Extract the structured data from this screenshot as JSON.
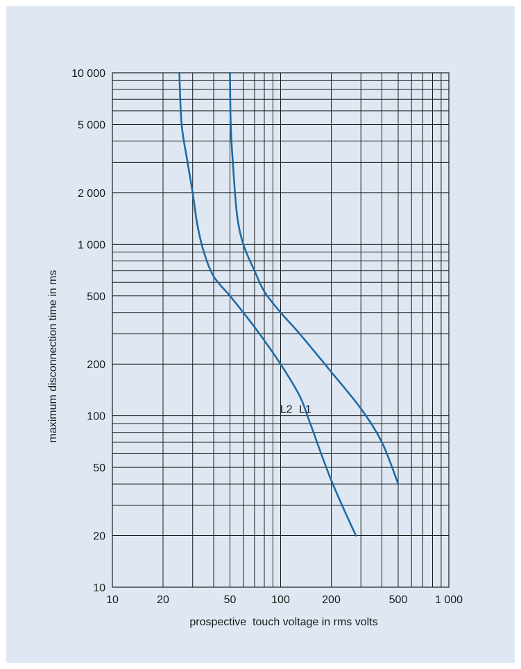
{
  "chart_data": {
    "type": "line",
    "xlabel": "prospective  touch voltage in rms volts",
    "ylabel": "maximum disconnection time in ms",
    "x_scale": "log",
    "y_scale": "log",
    "xlim": [
      10,
      1000
    ],
    "ylim": [
      10,
      10000
    ],
    "x_ticks": [
      {
        "value": 10,
        "label": "10"
      },
      {
        "value": 20,
        "label": "20"
      },
      {
        "value": 50,
        "label": "50"
      },
      {
        "value": 100,
        "label": "100"
      },
      {
        "value": 200,
        "label": "200"
      },
      {
        "value": 500,
        "label": "500"
      },
      {
        "value": 1000,
        "label": "1 000"
      }
    ],
    "y_ticks": [
      {
        "value": 10,
        "label": "10"
      },
      {
        "value": 20,
        "label": "20"
      },
      {
        "value": 50,
        "label": "50"
      },
      {
        "value": 100,
        "label": "100"
      },
      {
        "value": 200,
        "label": "200"
      },
      {
        "value": 500,
        "label": "500"
      },
      {
        "value": 1000,
        "label": "1 000"
      },
      {
        "value": 2000,
        "label": "2 000"
      },
      {
        "value": 5000,
        "label": "5 000"
      },
      {
        "value": 10000,
        "label": "10 000"
      }
    ],
    "grid": true,
    "line_color": "#1f6aa5",
    "series": [
      {
        "name": "L1",
        "label_at": [
          140,
          100
        ],
        "points": [
          [
            50,
            10000
          ],
          [
            50.5,
            5000
          ],
          [
            52,
            3000
          ],
          [
            55,
            1500
          ],
          [
            60,
            1000
          ],
          [
            70,
            700
          ],
          [
            80,
            530
          ],
          [
            100,
            400
          ],
          [
            130,
            300
          ],
          [
            200,
            180
          ],
          [
            300,
            110
          ],
          [
            400,
            70
          ],
          [
            500,
            40
          ]
        ]
      },
      {
        "name": "L2",
        "label_at": [
          108,
          100
        ],
        "points": [
          [
            25,
            10000
          ],
          [
            25.8,
            5000
          ],
          [
            28,
            3000
          ],
          [
            30,
            2000
          ],
          [
            32,
            1300
          ],
          [
            35,
            900
          ],
          [
            40,
            650
          ],
          [
            50,
            500
          ],
          [
            60,
            400
          ],
          [
            75,
            300
          ],
          [
            100,
            200
          ],
          [
            130,
            130
          ],
          [
            150,
            90
          ],
          [
            200,
            42
          ],
          [
            280,
            20
          ]
        ]
      }
    ]
  }
}
